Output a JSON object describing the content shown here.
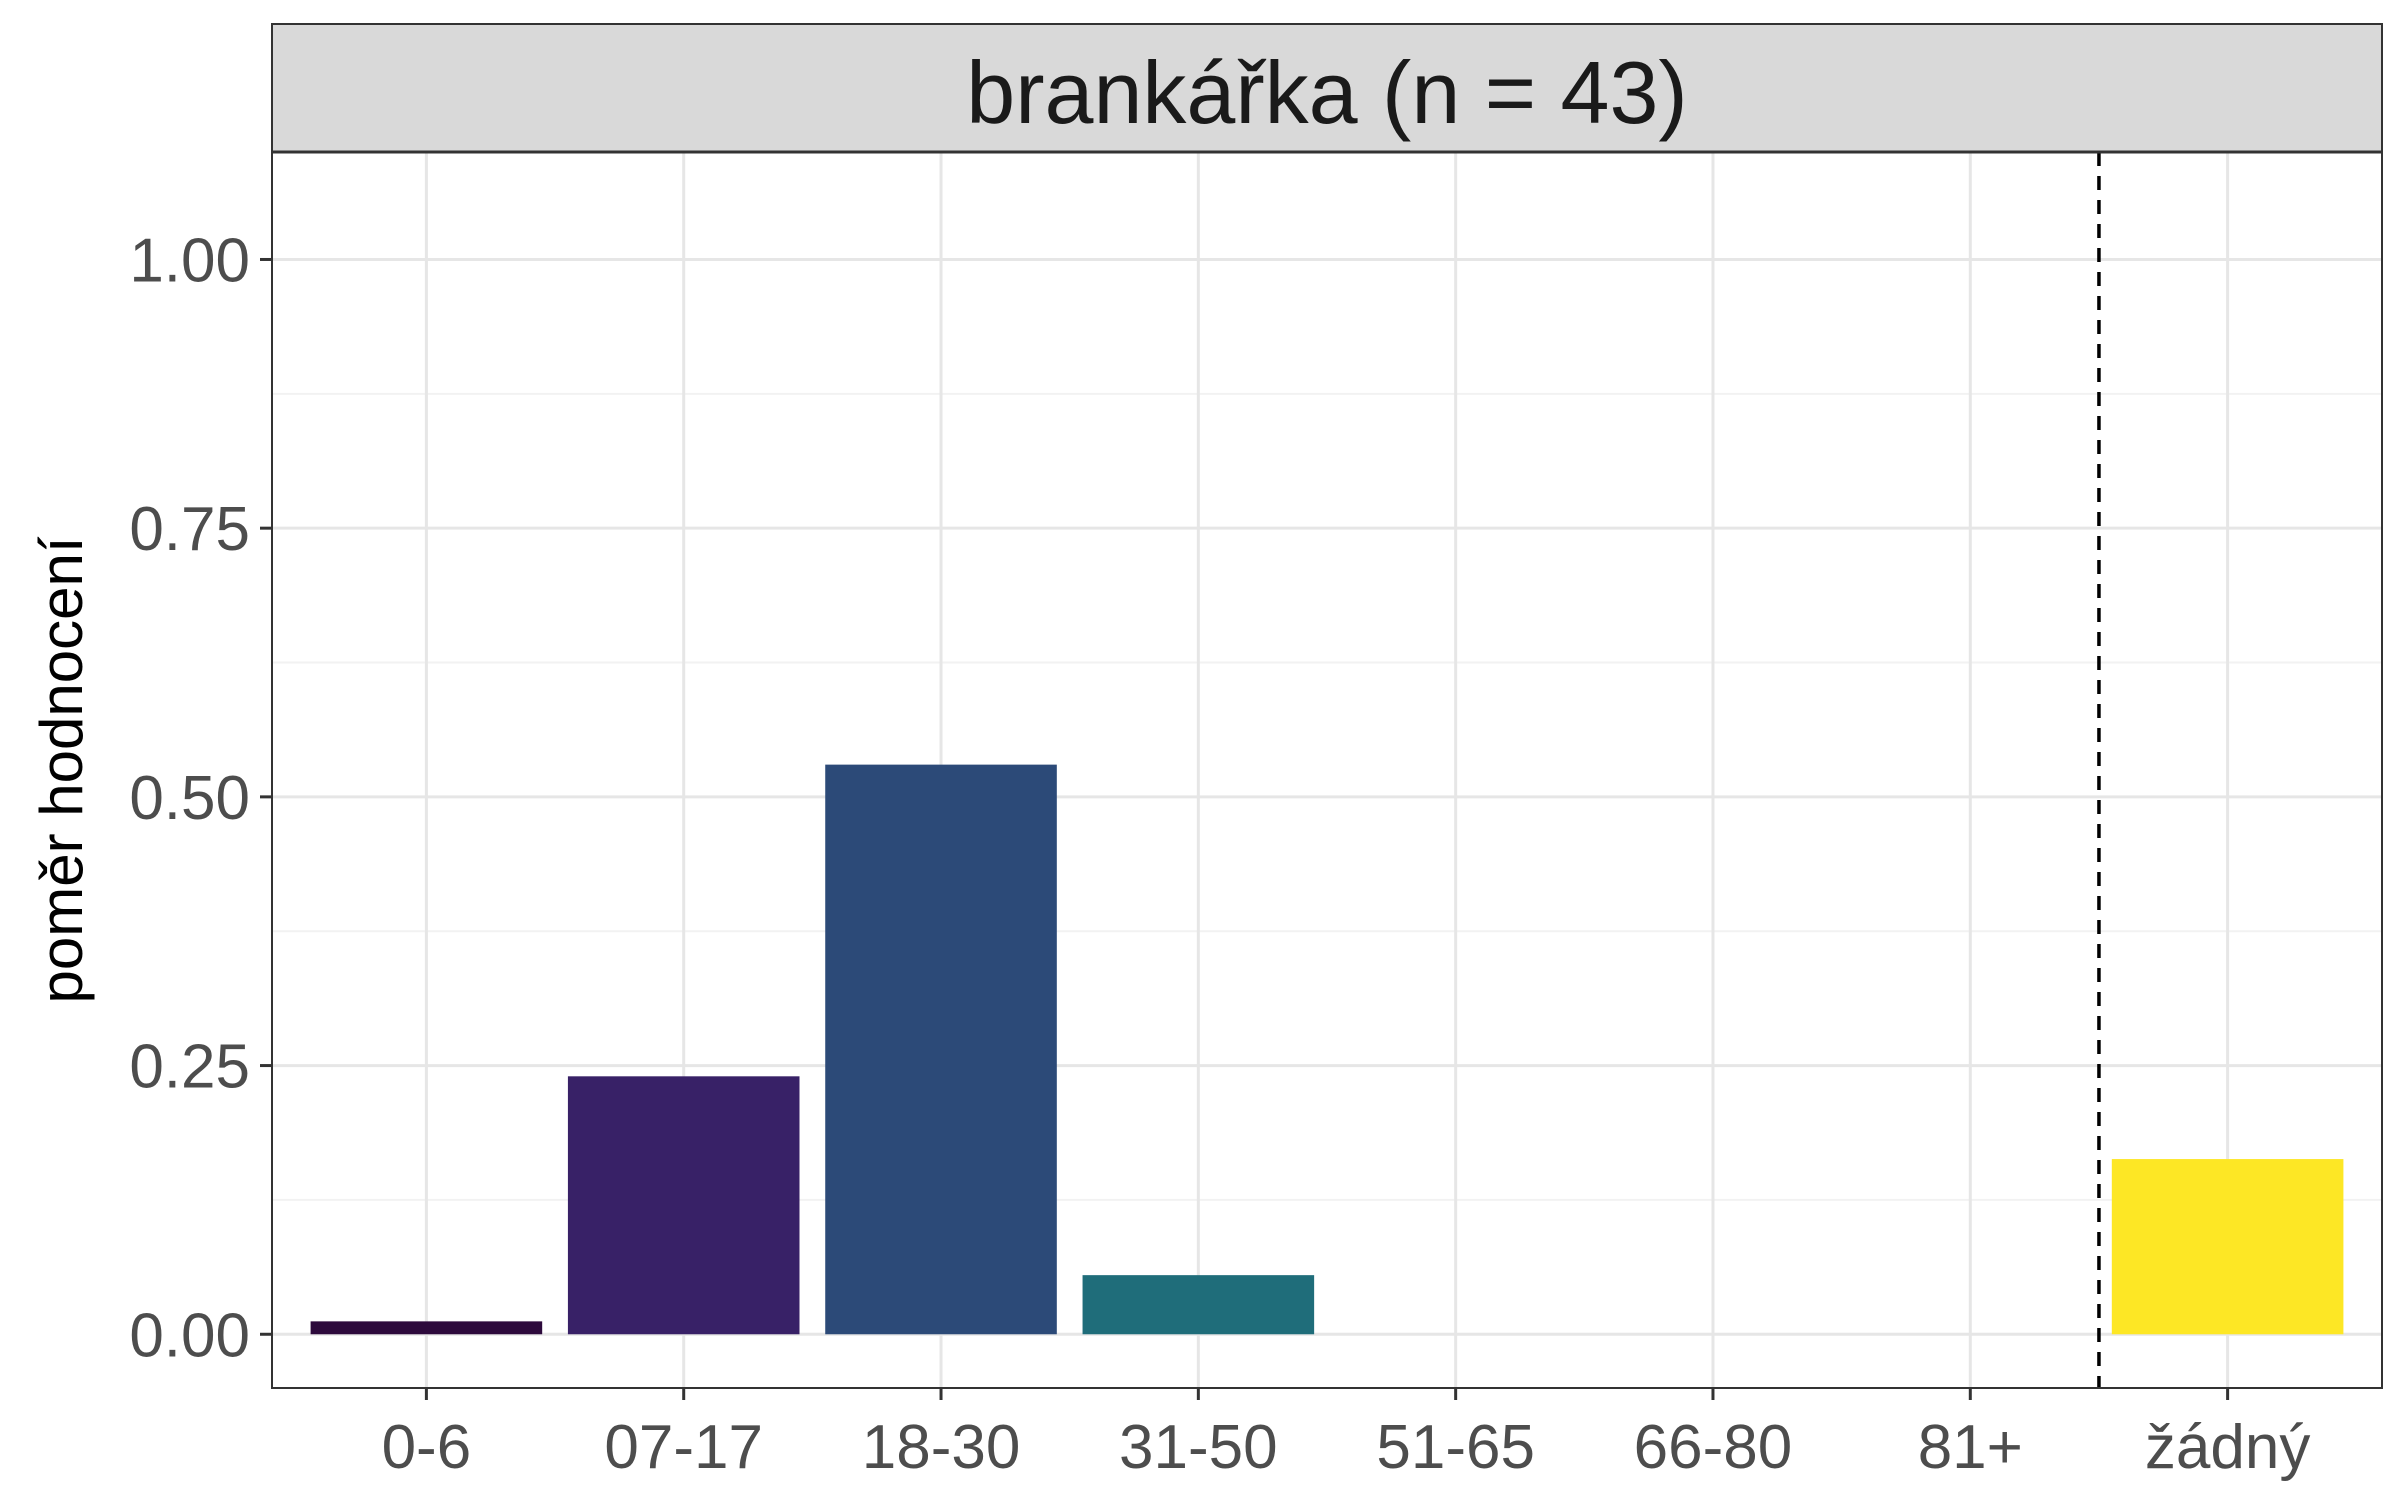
{
  "chart_data": {
    "type": "bar",
    "panel_title": "brankářka (n = 43)",
    "ylabel": "poměr hodnocení",
    "xlabel": "",
    "categories": [
      "0-6",
      "07-17",
      "18-30",
      "31-50",
      "51-65",
      "66-80",
      "81+",
      "žádný"
    ],
    "values": [
      0.012,
      0.24,
      0.53,
      0.055,
      0,
      0,
      0,
      0.163
    ],
    "bar_colors": [
      "#2d0a3c",
      "#382167",
      "#2c4a78",
      "#1f6d7a",
      "#21908d",
      "#5ec962",
      "#b5de2b",
      "#fde725"
    ],
    "ylim": [
      -0.05,
      1.1
    ],
    "yticks": [
      0,
      0.25,
      0.5,
      0.75,
      1
    ],
    "ytick_labels": [
      "0.00",
      "0.25",
      "0.50",
      "0.75",
      "1.00"
    ],
    "grid": true,
    "reference_line": {
      "between": [
        "81+",
        "žádný"
      ],
      "style": "dashed"
    }
  }
}
